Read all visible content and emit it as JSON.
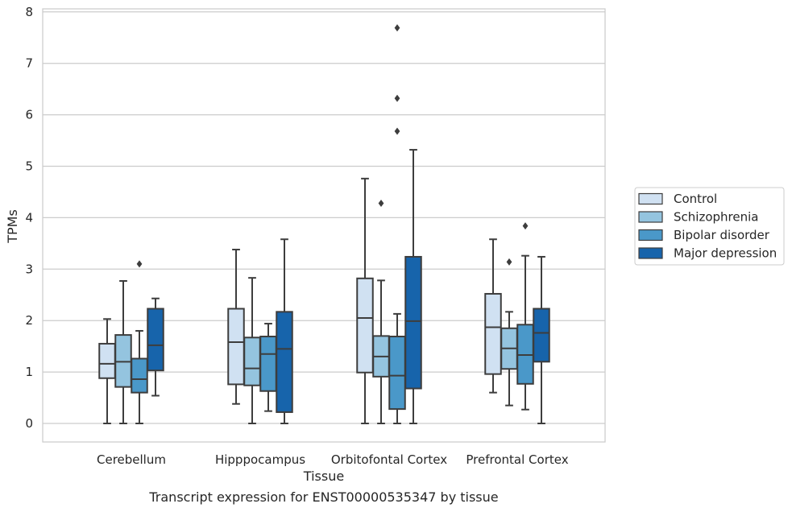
{
  "chart_data": {
    "type": "box",
    "caption": "Transcript expression for ENST00000535347 by tissue",
    "xlabel": "Tissue",
    "ylabel": "TPMs",
    "ylim": [
      -0.37,
      8.08
    ],
    "yticks": [
      0,
      1,
      2,
      3,
      4,
      5,
      6,
      7,
      8
    ],
    "grid": "horizontal",
    "legend_position": "right",
    "categories": [
      "Cerebellum",
      "Hipppocampus",
      "Orbitofontal Cortex",
      "Prefrontal Cortex"
    ],
    "series": [
      {
        "name": "Control",
        "color": "#d0e1f2",
        "boxes": [
          {
            "whisker_low": 0.0,
            "q1": 0.88,
            "median": 1.16,
            "q3": 1.55,
            "whisker_high": 2.03,
            "outliers": []
          },
          {
            "whisker_low": 0.38,
            "q1": 0.76,
            "median": 1.58,
            "q3": 2.23,
            "whisker_high": 3.38,
            "outliers": []
          },
          {
            "whisker_low": 0.0,
            "q1": 0.99,
            "median": 2.05,
            "q3": 2.82,
            "whisker_high": 4.76,
            "outliers": []
          },
          {
            "whisker_low": 0.6,
            "q1": 0.96,
            "median": 1.87,
            "q3": 2.52,
            "whisker_high": 3.58,
            "outliers": []
          }
        ]
      },
      {
        "name": "Schizophrenia",
        "color": "#94c4df",
        "boxes": [
          {
            "whisker_low": 0.0,
            "q1": 0.71,
            "median": 1.2,
            "q3": 1.72,
            "whisker_high": 2.77,
            "outliers": []
          },
          {
            "whisker_low": 0.0,
            "q1": 0.74,
            "median": 1.07,
            "q3": 1.67,
            "whisker_high": 2.83,
            "outliers": []
          },
          {
            "whisker_low": 0.0,
            "q1": 0.91,
            "median": 1.3,
            "q3": 1.7,
            "whisker_high": 2.78,
            "outliers": [
              4.28
            ]
          },
          {
            "whisker_low": 0.35,
            "q1": 1.06,
            "median": 1.46,
            "q3": 1.85,
            "whisker_high": 2.17,
            "outliers": [
              3.14
            ]
          }
        ]
      },
      {
        "name": "Bipolar disorder",
        "color": "#4a98c9",
        "boxes": [
          {
            "whisker_low": 0.0,
            "q1": 0.6,
            "median": 0.86,
            "q3": 1.26,
            "whisker_high": 1.8,
            "outliers": [
              3.1
            ]
          },
          {
            "whisker_low": 0.24,
            "q1": 0.63,
            "median": 1.35,
            "q3": 1.69,
            "whisker_high": 1.94,
            "outliers": []
          },
          {
            "whisker_low": 0.0,
            "q1": 0.28,
            "median": 0.93,
            "q3": 1.69,
            "whisker_high": 2.13,
            "outliers": [
              5.68,
              6.32,
              7.69
            ]
          },
          {
            "whisker_low": 0.27,
            "q1": 0.77,
            "median": 1.33,
            "q3": 1.92,
            "whisker_high": 3.26,
            "outliers": [
              3.84
            ]
          }
        ]
      },
      {
        "name": "Major depression",
        "color": "#1764ab",
        "boxes": [
          {
            "whisker_low": 0.54,
            "q1": 1.03,
            "median": 1.52,
            "q3": 2.23,
            "whisker_high": 2.43,
            "outliers": []
          },
          {
            "whisker_low": 0.0,
            "q1": 0.22,
            "median": 1.45,
            "q3": 2.17,
            "whisker_high": 3.58,
            "outliers": []
          },
          {
            "whisker_low": 0.0,
            "q1": 0.68,
            "median": 1.99,
            "q3": 3.24,
            "whisker_high": 5.32,
            "outliers": []
          },
          {
            "whisker_low": 0.0,
            "q1": 1.2,
            "median": 1.76,
            "q3": 2.23,
            "whisker_high": 3.24,
            "outliers": []
          }
        ]
      }
    ]
  }
}
